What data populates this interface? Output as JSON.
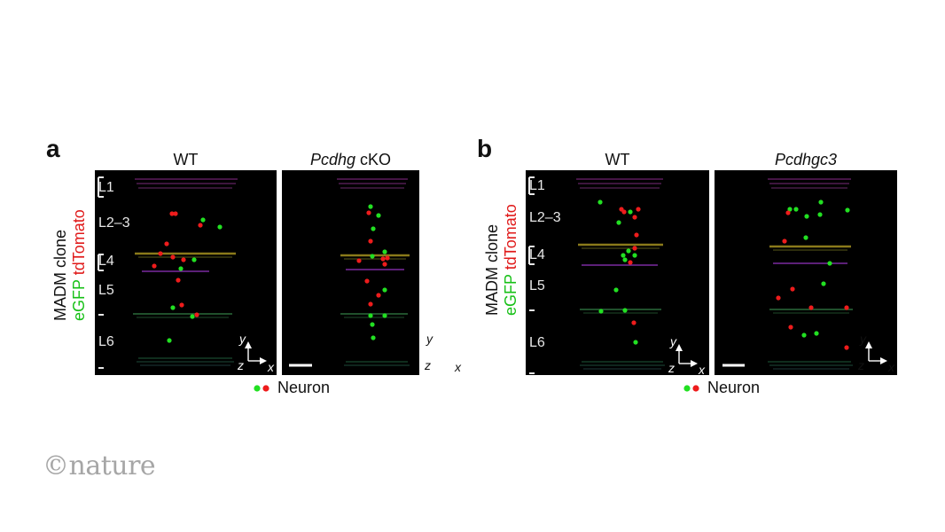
{
  "panels": [
    {
      "letter": "a",
      "y_label": {
        "line1": "MADM clone",
        "egfp": "eGFP",
        "tdtomato": "tdTomato"
      },
      "layers": [
        "L1",
        "L2–3",
        "L4",
        "L5",
        "L6"
      ],
      "titles": [
        {
          "italic": "",
          "plain": "WT"
        },
        {
          "italic": "Pcdhg",
          "plain": " cKO"
        }
      ]
    },
    {
      "letter": "b",
      "y_label": {
        "line1": "MADM clone",
        "egfp": "eGFP",
        "tdtomato": "tdTomato"
      },
      "layers": [
        "L1",
        "L2–3",
        "L4",
        "L5",
        "L6"
      ],
      "titles": [
        {
          "italic": "",
          "plain": "WT"
        },
        {
          "italic": "Pcdhgc3",
          "plain": ""
        }
      ]
    }
  ],
  "axes": {
    "y": "y",
    "z": "z",
    "x": "x"
  },
  "legend": {
    "label": "Neuron"
  },
  "credit": "©nature",
  "colors": {
    "green": "#22e022",
    "red": "#ee1c1c",
    "background": "#000000"
  }
}
